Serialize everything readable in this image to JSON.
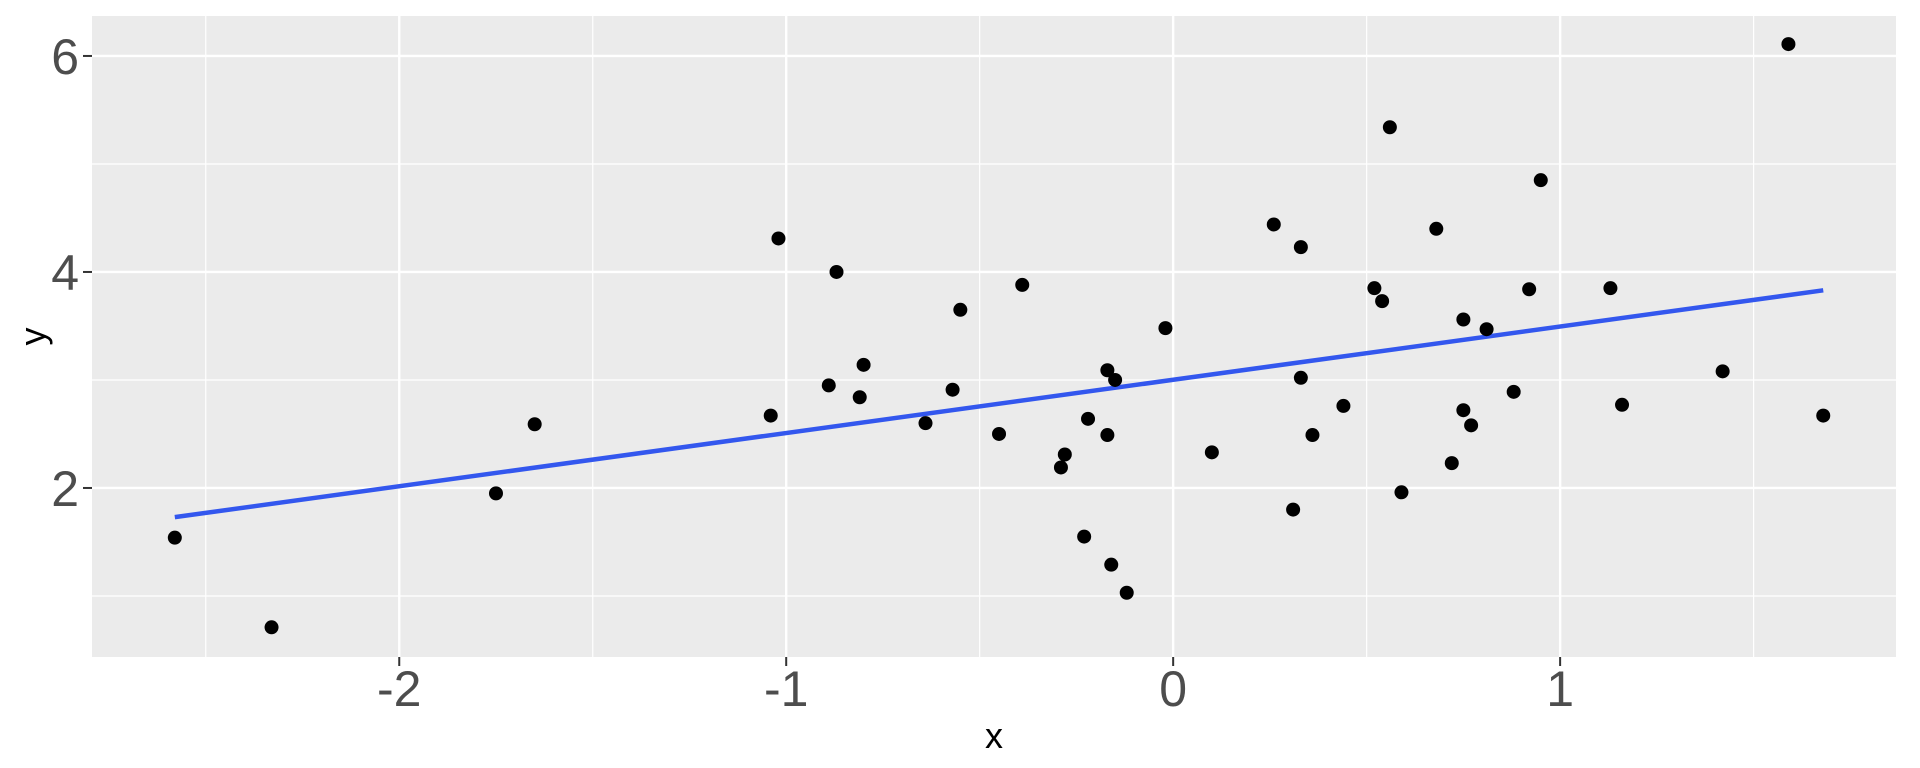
{
  "chart_data": {
    "type": "scatter",
    "title": "",
    "xlabel": "x",
    "ylabel": "y",
    "xlim": [
      -2.794,
      1.868
    ],
    "ylim": [
      0.435,
      6.37
    ],
    "x_ticks": [
      -2,
      -1,
      0,
      1
    ],
    "y_ticks": [
      2,
      4,
      6
    ],
    "x_minor_ticks": [
      -2.5,
      -1.5,
      -0.5,
      0.5,
      1.5
    ],
    "y_minor_ticks": [
      1,
      3,
      5
    ],
    "grid": true,
    "legend_position": "none",
    "points": [
      {
        "x": -2.58,
        "y": 1.54
      },
      {
        "x": -2.33,
        "y": 0.71
      },
      {
        "x": -1.75,
        "y": 1.95
      },
      {
        "x": -1.65,
        "y": 2.59
      },
      {
        "x": -1.04,
        "y": 2.67
      },
      {
        "x": -1.02,
        "y": 4.31
      },
      {
        "x": -0.89,
        "y": 2.95
      },
      {
        "x": -0.87,
        "y": 4.0
      },
      {
        "x": -0.81,
        "y": 2.84
      },
      {
        "x": -0.8,
        "y": 3.14
      },
      {
        "x": -0.64,
        "y": 2.6
      },
      {
        "x": -0.57,
        "y": 2.91
      },
      {
        "x": -0.55,
        "y": 3.65
      },
      {
        "x": -0.45,
        "y": 2.5
      },
      {
        "x": -0.39,
        "y": 3.88
      },
      {
        "x": -0.29,
        "y": 2.19
      },
      {
        "x": -0.28,
        "y": 2.31
      },
      {
        "x": -0.23,
        "y": 1.55
      },
      {
        "x": -0.22,
        "y": 2.64
      },
      {
        "x": -0.17,
        "y": 3.09
      },
      {
        "x": -0.17,
        "y": 2.49
      },
      {
        "x": -0.16,
        "y": 1.29
      },
      {
        "x": -0.15,
        "y": 3.0
      },
      {
        "x": -0.12,
        "y": 1.03
      },
      {
        "x": -0.02,
        "y": 3.48
      },
      {
        "x": 0.1,
        "y": 2.33
      },
      {
        "x": 0.26,
        "y": 4.44
      },
      {
        "x": 0.31,
        "y": 1.8
      },
      {
        "x": 0.33,
        "y": 4.23
      },
      {
        "x": 0.33,
        "y": 3.02
      },
      {
        "x": 0.36,
        "y": 2.49
      },
      {
        "x": 0.44,
        "y": 2.76
      },
      {
        "x": 0.52,
        "y": 3.85
      },
      {
        "x": 0.54,
        "y": 3.73
      },
      {
        "x": 0.56,
        "y": 5.34
      },
      {
        "x": 0.59,
        "y": 1.96
      },
      {
        "x": 0.68,
        "y": 4.4
      },
      {
        "x": 0.72,
        "y": 2.23
      },
      {
        "x": 0.75,
        "y": 3.56
      },
      {
        "x": 0.75,
        "y": 2.72
      },
      {
        "x": 0.77,
        "y": 2.58
      },
      {
        "x": 0.81,
        "y": 3.47
      },
      {
        "x": 0.88,
        "y": 2.89
      },
      {
        "x": 0.92,
        "y": 3.84
      },
      {
        "x": 0.95,
        "y": 4.85
      },
      {
        "x": 1.13,
        "y": 3.85
      },
      {
        "x": 1.16,
        "y": 2.77
      },
      {
        "x": 1.42,
        "y": 3.08
      },
      {
        "x": 1.59,
        "y": 6.11
      },
      {
        "x": 1.68,
        "y": 2.67
      }
    ],
    "regression_line": {
      "slope": 0.49,
      "intercept": 3.0,
      "endpoints": [
        {
          "x": -2.58,
          "y": 1.73
        },
        {
          "x": 1.68,
          "y": 3.83
        }
      ]
    },
    "colors": {
      "point": "#000000",
      "line": "#3357EE",
      "panel_bg": "#EBEBEB",
      "grid": "#FFFFFF",
      "tick_label": "#4D4D4D",
      "axis_title": "#000000",
      "tick_mark": "#333333",
      "outer_bg": "#FFFFFF"
    }
  }
}
